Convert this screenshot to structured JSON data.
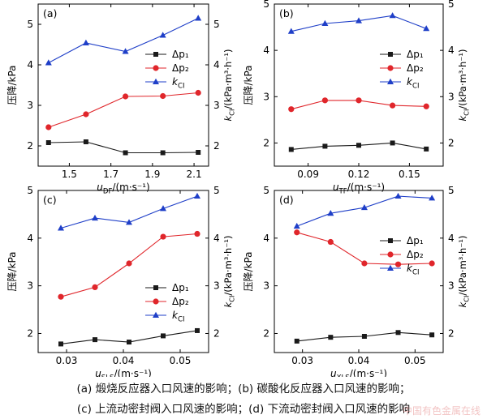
{
  "colors": {
    "dp1": "#1a1a1a",
    "dp2": "#e0262b",
    "kci": "#1f3fc8",
    "axis": "#000000"
  },
  "legend_labels": {
    "dp1": "Δp₁",
    "dp2": "Δp₂",
    "kci": "k_CI"
  },
  "left_ylabel": "压降/kPa",
  "right_ylabel": "k_CI/(kPa·m³·h⁻¹)",
  "chart_data": [
    {
      "type": "line",
      "panel_label": "(a)",
      "xlabel": "u_DF/(m·s⁻¹)",
      "x": [
        1.4,
        1.58,
        1.77,
        1.95,
        2.12
      ],
      "xlim": [
        1.35,
        2.17
      ],
      "xticks": [
        1.5,
        1.7,
        1.9,
        2.1
      ],
      "xtick_labels": [
        "1.5",
        "1.7",
        "1.9",
        "2.1"
      ],
      "ylim": [
        1.5,
        5.5
      ],
      "yticks": [
        2,
        3,
        4,
        5
      ],
      "ytick_labels": [
        "2",
        "3",
        "4",
        "5"
      ],
      "y2lim": [
        1.5,
        5.5
      ],
      "y2ticks": [
        2,
        3,
        4,
        5
      ],
      "y2tick_labels": [
        "2",
        "3",
        "4",
        "5"
      ],
      "legend_position": "center-right",
      "series": [
        {
          "name": "Δp₁",
          "axis": "left",
          "marker": "square",
          "values": [
            2.08,
            2.1,
            1.83,
            1.83,
            1.84
          ]
        },
        {
          "name": "Δp₂",
          "axis": "left",
          "marker": "circle",
          "values": [
            2.46,
            2.78,
            3.22,
            3.23,
            3.31
          ]
        },
        {
          "name": "k_CI",
          "axis": "right",
          "marker": "triangle",
          "values": [
            4.05,
            4.54,
            4.33,
            4.73,
            5.15
          ]
        }
      ]
    },
    {
      "type": "line",
      "panel_label": "(b)",
      "xlabel": "u_TF/(m·s⁻¹)",
      "x": [
        0.08,
        0.1,
        0.12,
        0.14,
        0.16
      ],
      "xlim": [
        0.07,
        0.17
      ],
      "xticks": [
        0.09,
        0.12,
        0.15
      ],
      "xtick_labels": [
        "0.09",
        "0.12",
        "0.15"
      ],
      "ylim": [
        1.5,
        5.0
      ],
      "yticks": [
        2,
        3,
        4,
        5
      ],
      "ytick_labels": [
        "2",
        "3",
        "4",
        "5"
      ],
      "y2lim": [
        1.5,
        5.0
      ],
      "y2ticks": [
        2,
        3,
        4,
        5
      ],
      "y2tick_labels": [
        "2",
        "3",
        "4",
        "5"
      ],
      "legend_position": "center-right",
      "series": [
        {
          "name": "Δp₁",
          "axis": "left",
          "marker": "square",
          "values": [
            1.86,
            1.93,
            1.95,
            2.0,
            1.87
          ]
        },
        {
          "name": "Δp₂",
          "axis": "left",
          "marker": "circle",
          "values": [
            2.73,
            2.92,
            2.92,
            2.81,
            2.79
          ]
        },
        {
          "name": "k_CI",
          "axis": "right",
          "marker": "triangle",
          "values": [
            4.41,
            4.58,
            4.64,
            4.75,
            4.47
          ]
        }
      ]
    },
    {
      "type": "line",
      "panel_label": "(c)",
      "xlabel": "u_SLS/(m·s⁻¹)",
      "x": [
        0.029,
        0.035,
        0.041,
        0.047,
        0.053
      ],
      "xlim": [
        0.025,
        0.055
      ],
      "xticks": [
        0.03,
        0.04,
        0.05
      ],
      "xtick_labels": [
        "0.03",
        "0.04",
        "0.05"
      ],
      "ylim": [
        1.6,
        5.0
      ],
      "yticks": [
        2,
        3,
        4,
        5
      ],
      "ytick_labels": [
        "2",
        "3",
        "4",
        "5"
      ],
      "y2lim": [
        1.6,
        5.0
      ],
      "y2ticks": [
        2,
        3,
        4,
        5
      ],
      "y2tick_labels": [
        "2",
        "3",
        "4",
        "5"
      ],
      "legend_position": "bottom-right",
      "series": [
        {
          "name": "Δp₁",
          "axis": "left",
          "marker": "square",
          "values": [
            1.78,
            1.87,
            1.82,
            1.95,
            2.06
          ]
        },
        {
          "name": "Δp₂",
          "axis": "left",
          "marker": "circle",
          "values": [
            2.77,
            2.97,
            3.47,
            4.03,
            4.09
          ]
        },
        {
          "name": "k_CI",
          "axis": "right",
          "marker": "triangle",
          "values": [
            4.21,
            4.42,
            4.33,
            4.62,
            4.88
          ]
        }
      ]
    },
    {
      "type": "line",
      "panel_label": "(d)",
      "xlabel": "u_XLS/(m·s⁻¹)",
      "x": [
        0.029,
        0.035,
        0.041,
        0.047,
        0.053
      ],
      "xlim": [
        0.025,
        0.055
      ],
      "xticks": [
        0.03,
        0.04,
        0.05
      ],
      "xtick_labels": [
        "0.03",
        "0.04",
        "0.05"
      ],
      "ylim": [
        1.6,
        5.0
      ],
      "yticks": [
        2,
        3,
        4,
        5
      ],
      "ytick_labels": [
        "2",
        "3",
        "4",
        "5"
      ],
      "y2lim": [
        1.6,
        5.0
      ],
      "y2ticks": [
        2,
        3,
        4,
        5
      ],
      "y2tick_labels": [
        "2",
        "3",
        "4",
        "5"
      ],
      "legend_position": "center-right",
      "series": [
        {
          "name": "Δp₁",
          "axis": "left",
          "marker": "square",
          "values": [
            1.84,
            1.92,
            1.94,
            2.02,
            1.97
          ]
        },
        {
          "name": "Δp₂",
          "axis": "left",
          "marker": "circle",
          "values": [
            4.12,
            3.92,
            3.47,
            3.45,
            3.47
          ]
        },
        {
          "name": "k_CI",
          "axis": "right",
          "marker": "triangle",
          "values": [
            4.25,
            4.52,
            4.64,
            4.88,
            4.84
          ]
        }
      ]
    }
  ],
  "caption": {
    "line1": "(a) 煅烧反应器入口风速的影响；(b) 碳酸化反应器入口风速的影响；",
    "line2": "(c) 上流动密封阀入口风速的影响；(d) 下流动密封阀入口风速的影响"
  },
  "watermark": "中国有色金属在线"
}
